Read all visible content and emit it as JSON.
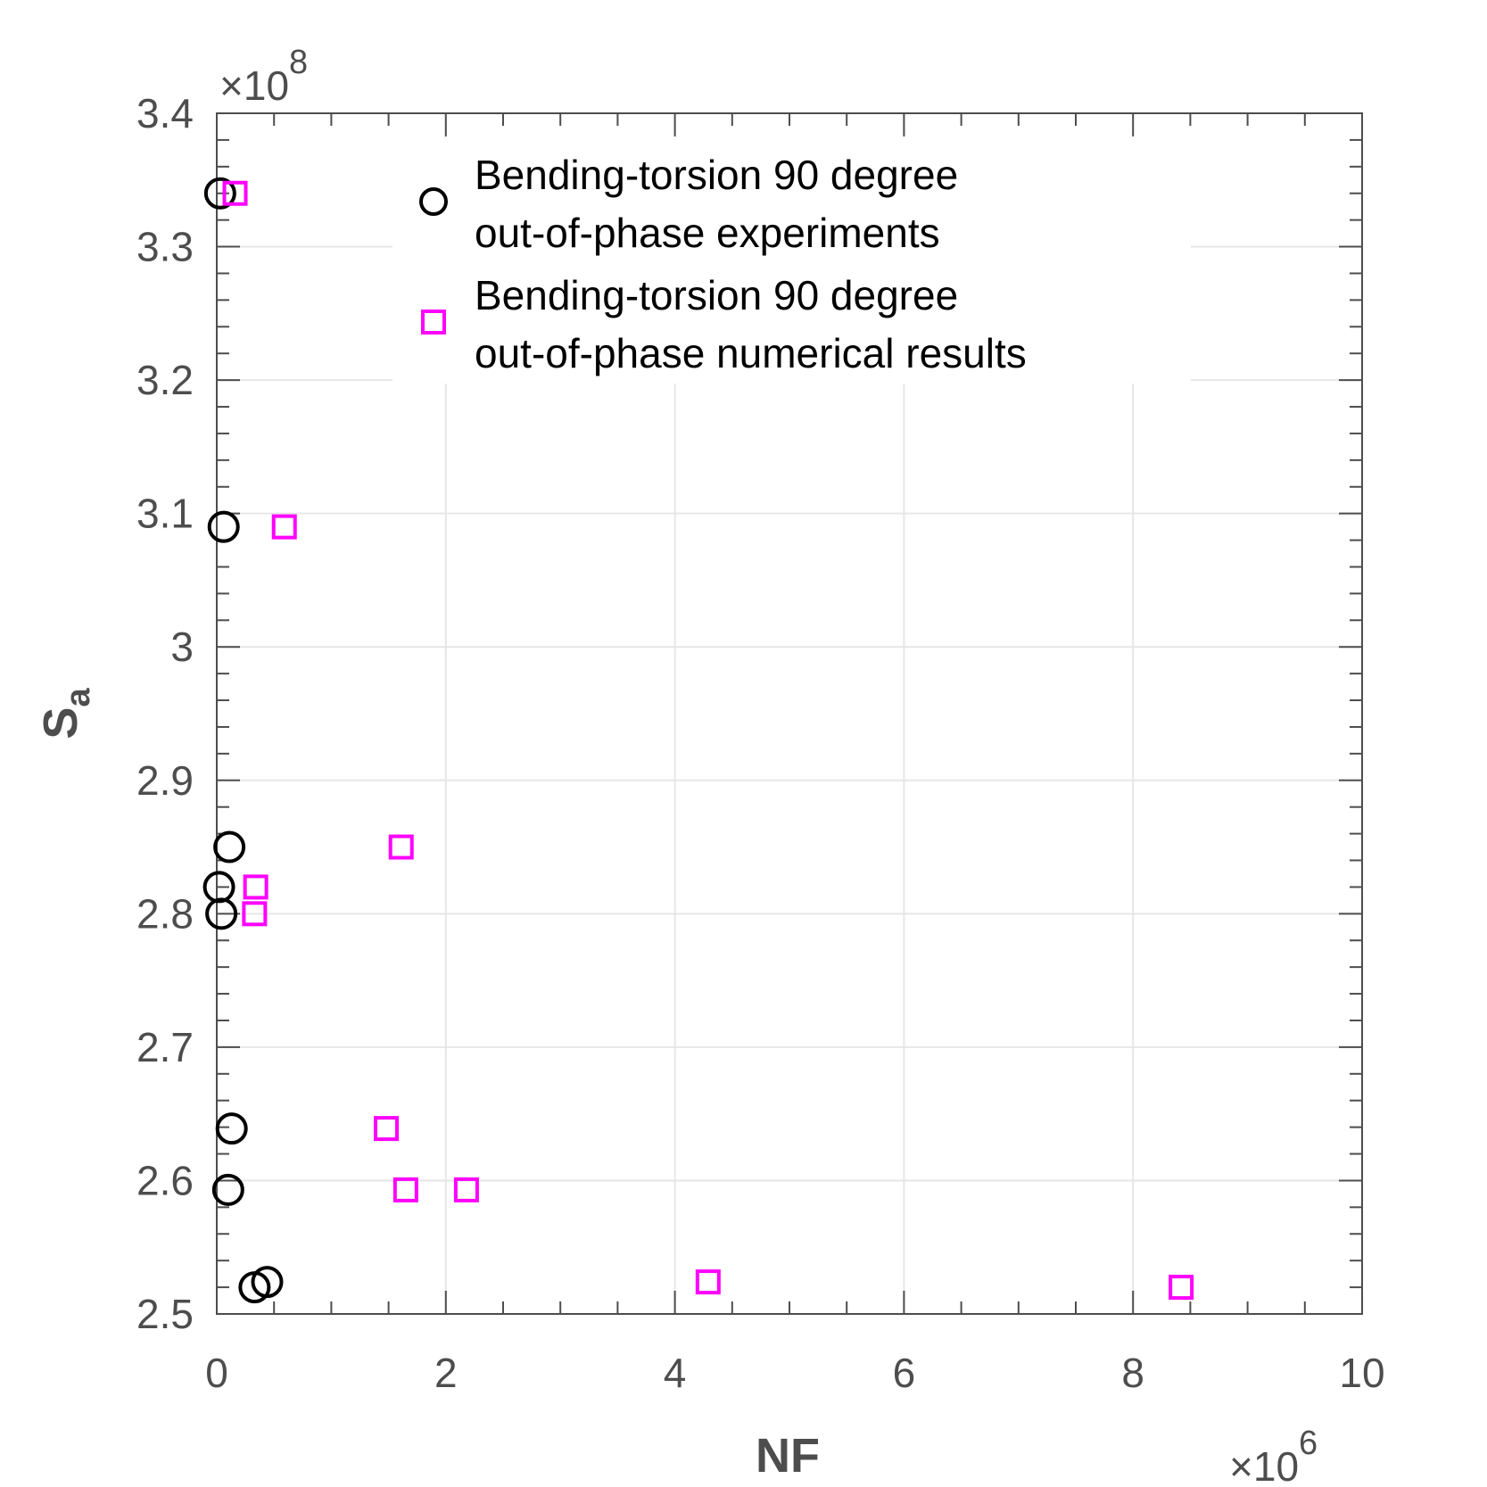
{
  "chart_data": {
    "type": "scatter",
    "xlabel": "NF",
    "ylabel": "S",
    "ylabel_subscript": "a",
    "x_exponent_base": "×10",
    "x_exponent_power": "6",
    "y_exponent_base": "×10",
    "y_exponent_power": "8",
    "xlim": [
      0,
      10000000
    ],
    "ylim": [
      250000000,
      340000000
    ],
    "x_ticks": [
      0,
      2000000,
      4000000,
      6000000,
      8000000,
      10000000
    ],
    "x_tick_labels": [
      "0",
      "2",
      "4",
      "6",
      "8",
      "10"
    ],
    "y_ticks": [
      250000000,
      260000000,
      270000000,
      280000000,
      290000000,
      300000000,
      310000000,
      320000000,
      330000000,
      340000000
    ],
    "y_tick_labels": [
      "2.5",
      "2.6",
      "2.7",
      "2.8",
      "2.9",
      "3",
      "3.1",
      "3.2",
      "3.3",
      "3.4"
    ],
    "grid": true,
    "legend_position": "top",
    "colors": {
      "axis": "#4d4d4d",
      "grid": "#e6e6e6",
      "experiments": "#000000",
      "numerical": "#ff00ff"
    },
    "series": [
      {
        "name_lines": [
          "Bending-torsion 90 degree",
          "out-of-phase experiments"
        ],
        "marker": "circle",
        "color": "#000000",
        "points": [
          {
            "x": 30000,
            "y": 334000000
          },
          {
            "x": 60000,
            "y": 309000000
          },
          {
            "x": 110000,
            "y": 285000000
          },
          {
            "x": 20000,
            "y": 282000000
          },
          {
            "x": 40000,
            "y": 280000000
          },
          {
            "x": 130000,
            "y": 263900000
          },
          {
            "x": 100000,
            "y": 259300000
          },
          {
            "x": 330000,
            "y": 252000000
          },
          {
            "x": 440000,
            "y": 252400000
          }
        ]
      },
      {
        "name_lines": [
          "Bending-torsion 90 degree",
          "out-of-phase numerical results"
        ],
        "marker": "square",
        "color": "#ff00ff",
        "points": [
          {
            "x": 160000,
            "y": 334000000
          },
          {
            "x": 590000,
            "y": 309000000
          },
          {
            "x": 1610000,
            "y": 285000000
          },
          {
            "x": 340000,
            "y": 282000000
          },
          {
            "x": 330000,
            "y": 280000000
          },
          {
            "x": 1480000,
            "y": 263900000
          },
          {
            "x": 1650000,
            "y": 259300000
          },
          {
            "x": 2180000,
            "y": 259300000
          },
          {
            "x": 4290000,
            "y": 252400000
          },
          {
            "x": 8420000,
            "y": 252000000
          }
        ]
      }
    ]
  }
}
